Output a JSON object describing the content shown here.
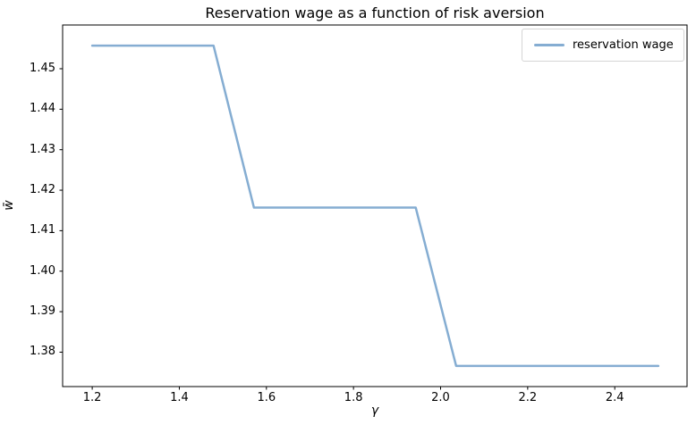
{
  "figure": {
    "background": "#ffffff"
  },
  "chart_data": {
    "type": "line",
    "title": "Reservation wage as a function of risk aversion",
    "xlabel": "γ",
    "ylabel": "w̄",
    "x": [
      1.2,
      1.2929,
      1.3857,
      1.4786,
      1.5714,
      1.6643,
      1.7571,
      1.85,
      1.9429,
      2.0357,
      2.1286,
      2.2214,
      2.3143,
      2.4071,
      2.5
    ],
    "series": [
      {
        "name": "reservation wage",
        "color": "#85add2",
        "line_width": 2.5,
        "values": [
          1.4557,
          1.4557,
          1.4557,
          1.4557,
          1.4157,
          1.4157,
          1.4157,
          1.4157,
          1.4157,
          1.3766,
          1.3766,
          1.3766,
          1.3766,
          1.3766,
          1.3766
        ]
      }
    ],
    "xlim": [
      1.132,
      2.566
    ],
    "ylim": [
      1.3715,
      1.4608
    ],
    "xticks": [
      1.2,
      1.4,
      1.6,
      1.8,
      2.0,
      2.2,
      2.4
    ],
    "yticks": [
      1.45,
      1.44,
      1.43,
      1.42,
      1.41,
      1.4,
      1.39,
      1.38
    ],
    "x_tick_decimals": 1,
    "y_tick_decimals": 2,
    "grid": false,
    "axis_color": "#000000",
    "text_color": "#000000",
    "legend": {
      "location": "upper-right",
      "entries": [
        {
          "label": "reservation wage",
          "color": "#85add2"
        }
      ]
    }
  }
}
